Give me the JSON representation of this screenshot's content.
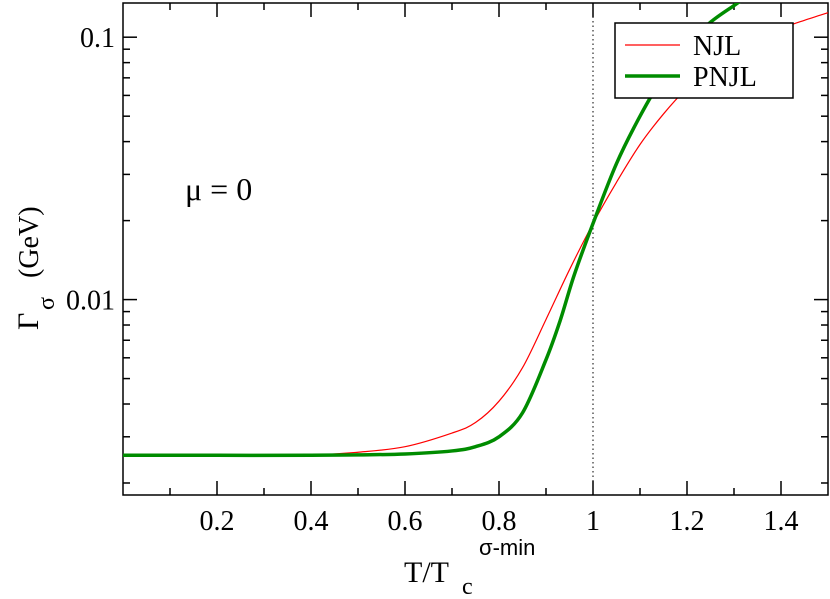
{
  "chart_data": {
    "type": "line",
    "xlabel": {
      "main": "T/T",
      "sub": "c",
      "sup": "σ-min"
    },
    "ylabel": {
      "main": "Γ",
      "sub": "σ",
      "unit": "(GeV)"
    },
    "xlim": [
      0.0,
      1.5
    ],
    "ylim": [
      0.0018,
      0.135
    ],
    "yscale": "log",
    "x_ticks": [
      0.2,
      0.4,
      0.6,
      0.8,
      1.0,
      1.2,
      1.4
    ],
    "x_tick_labels": [
      "0.2",
      "0.4",
      "0.6",
      "0.8",
      "1",
      "1.2",
      "1.4"
    ],
    "y_ticks": [
      0.01,
      0.1
    ],
    "y_tick_labels": [
      "0.01",
      "0.1"
    ],
    "grid": false,
    "legend": "top-right",
    "annotation": "μ = 0",
    "reference_line": {
      "x": 1.0,
      "style": "dotted"
    },
    "series": [
      {
        "name": "NJL",
        "color": "#ff0000",
        "x": [
          0.0,
          0.2,
          0.4,
          0.5,
          0.6,
          0.7,
          0.75,
          0.8,
          0.85,
          0.9,
          0.95,
          1.0,
          1.05,
          1.1,
          1.15,
          1.2,
          1.25,
          1.3,
          1.35,
          1.4,
          1.45,
          1.5
        ],
        "values": [
          0.00255,
          0.00255,
          0.00256,
          0.00262,
          0.00275,
          0.0031,
          0.0034,
          0.0041,
          0.0055,
          0.0084,
          0.013,
          0.0195,
          0.028,
          0.039,
          0.051,
          0.064,
          0.077,
          0.089,
          0.099,
          0.108,
          0.116,
          0.124
        ]
      },
      {
        "name": "PNJL",
        "color": "#008c00",
        "x": [
          0.0,
          0.2,
          0.4,
          0.5,
          0.6,
          0.7,
          0.75,
          0.8,
          0.85,
          0.9,
          0.93,
          0.96,
          1.0,
          1.05,
          1.1,
          1.15,
          1.2,
          1.25,
          1.3,
          1.32
        ],
        "values": [
          0.00255,
          0.00255,
          0.00255,
          0.00256,
          0.00258,
          0.00265,
          0.00275,
          0.003,
          0.0037,
          0.0059,
          0.0083,
          0.0124,
          0.0195,
          0.033,
          0.05,
          0.071,
          0.093,
          0.114,
          0.132,
          0.14
        ]
      }
    ]
  }
}
